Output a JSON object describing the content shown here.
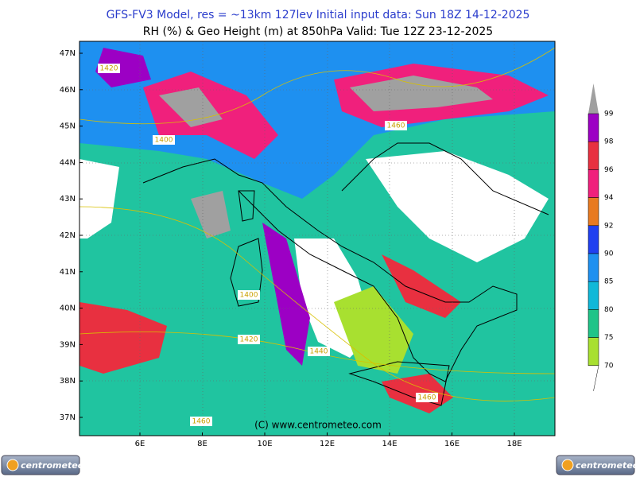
{
  "header": {
    "title": "GFS-FV3 Model, res = ~13km 127lev    Initial input data: Sun 18Z 14-12-2025",
    "subtitle": "RH (%) & Geo Height (m) at 850hPa  Valid: Tue 12Z 23-12-2025"
  },
  "map": {
    "lat_labels": [
      "47N",
      "46N",
      "45N",
      "44N",
      "43N",
      "42N",
      "41N",
      "40N",
      "39N",
      "38N",
      "37N"
    ],
    "lon_labels": [
      "6E",
      "8E",
      "10E",
      "12E",
      "14E",
      "16E",
      "18E"
    ],
    "contour_labels": [
      "1420",
      "1400",
      "1460",
      "1400",
      "1420",
      "1440",
      "1460",
      "1460"
    ],
    "copyright": "(C) www.centrometeo.com"
  },
  "legend": {
    "levels": [
      99,
      98,
      96,
      94,
      92,
      90,
      85,
      80,
      75,
      70
    ],
    "colors": [
      "#9c00c4",
      "#e83040",
      "#f0207c",
      "#e87a20",
      "#2040f0",
      "#1e90f0",
      "#10b8d8",
      "#20c488",
      "#a8e030"
    ],
    "above_color": "#a0a0a0"
  },
  "footer": {
    "logo_left": "centrometeo",
    "logo_right": "centrometeo"
  }
}
